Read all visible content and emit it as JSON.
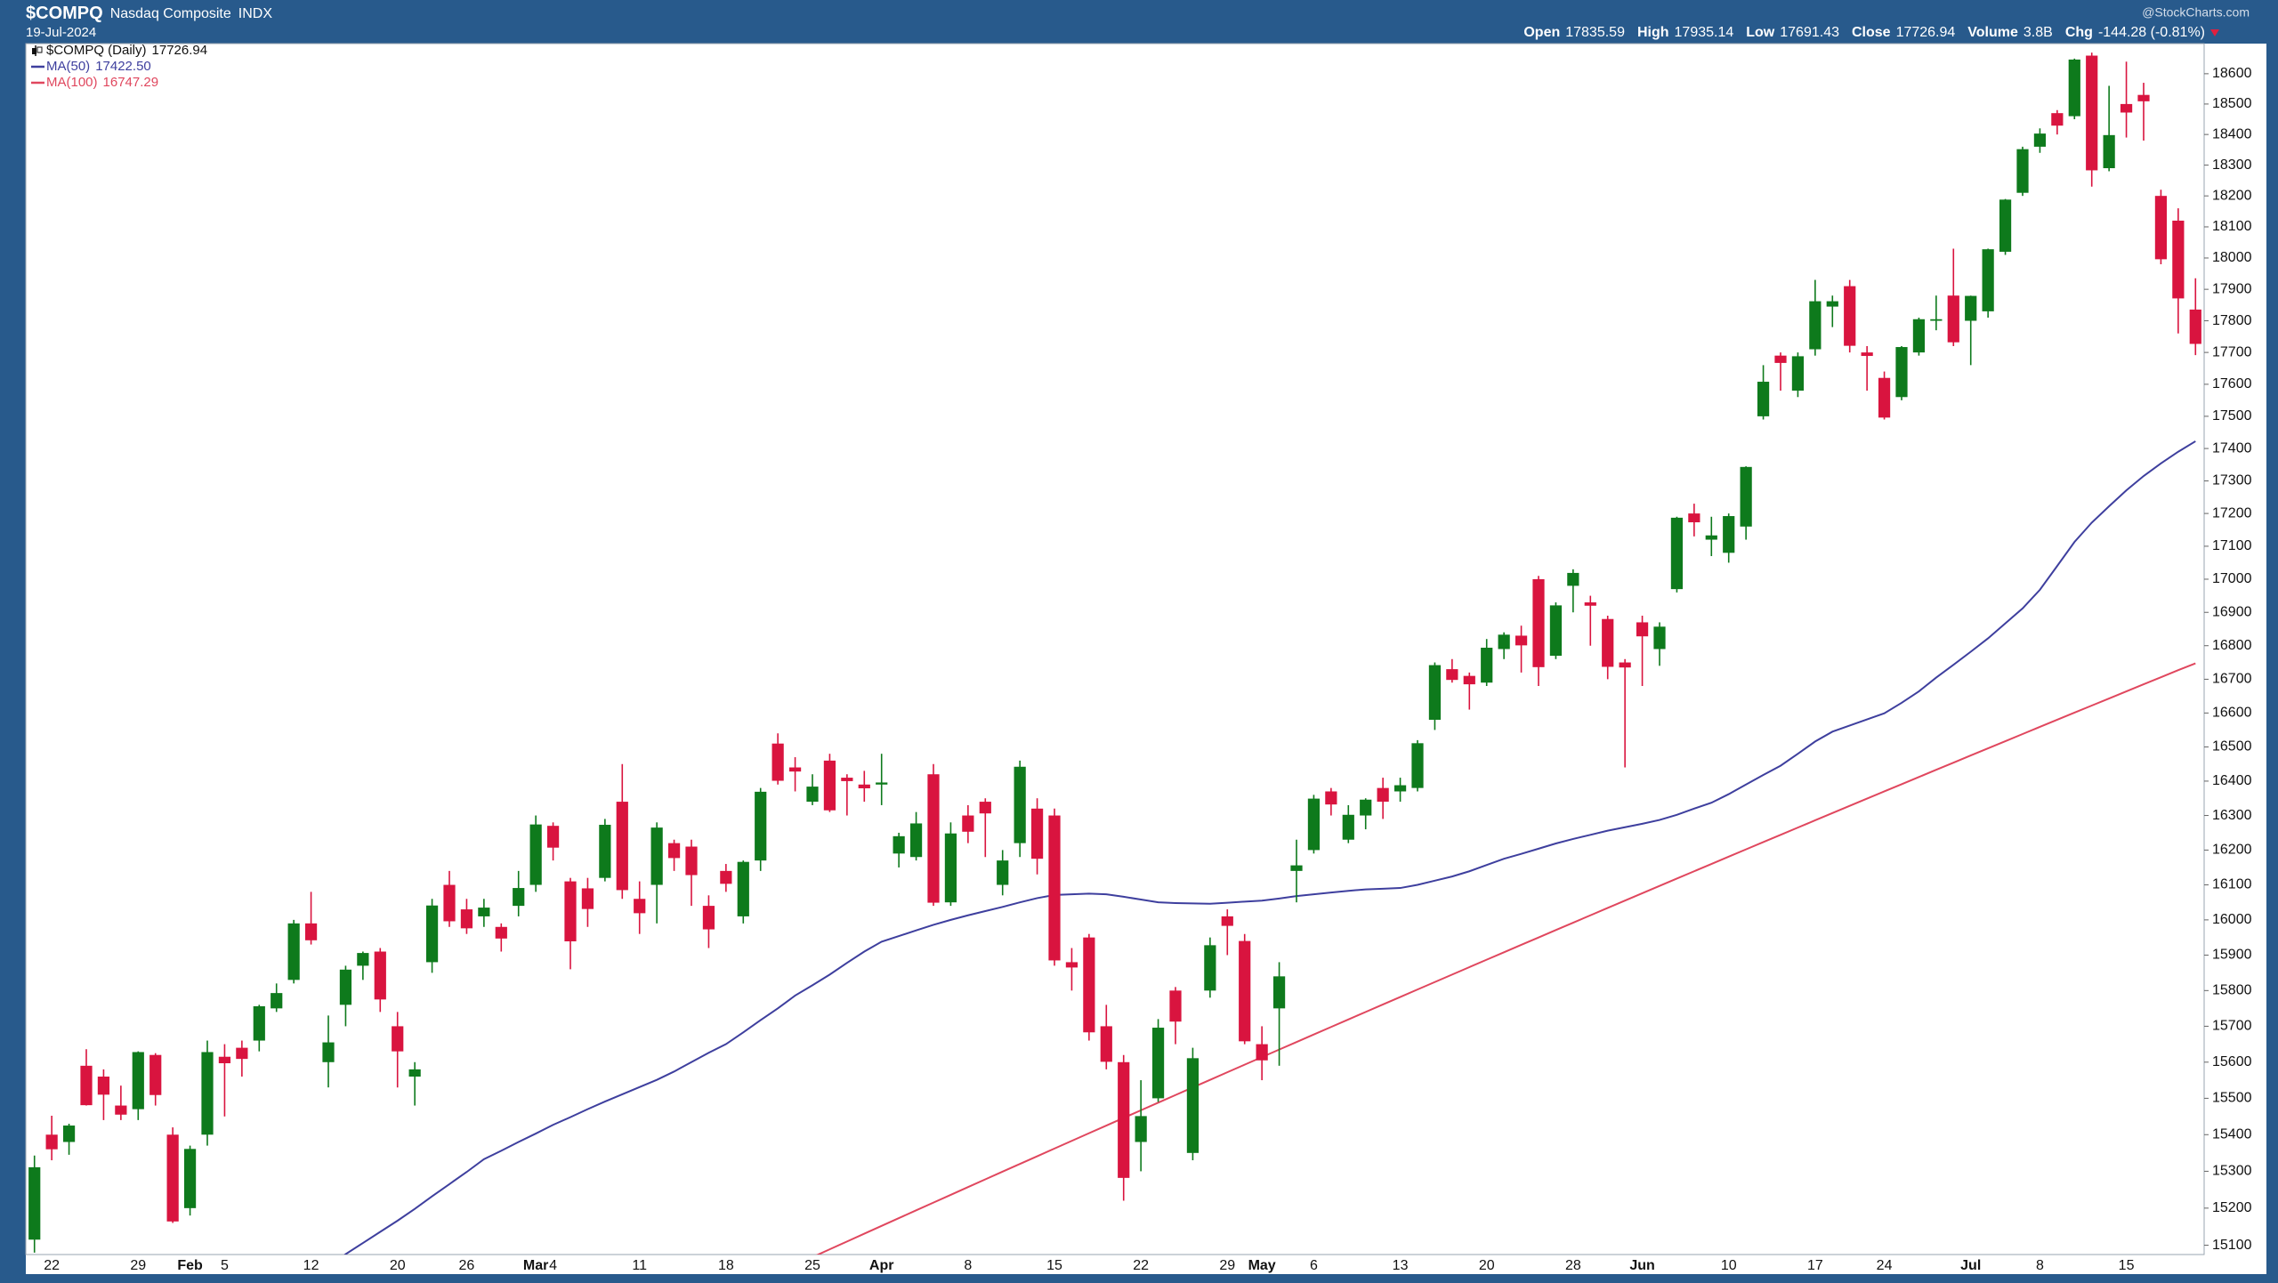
{
  "chart_data": {
    "type": "candlestick",
    "header": {
      "symbol": "$COMPQ",
      "name": "Nasdaq Composite",
      "exchange": "INDX",
      "date": "19-Jul-2024",
      "watermark": "@StockCharts.com",
      "stats": [
        {
          "label": "Open",
          "value": "17835.59"
        },
        {
          "label": "High",
          "value": "17935.14"
        },
        {
          "label": "Low",
          "value": "17691.43"
        },
        {
          "label": "Close",
          "value": "17726.94"
        },
        {
          "label": "Volume",
          "value": "3.8B"
        },
        {
          "label": "Chg",
          "value": "-144.28 (-0.81%)"
        }
      ]
    },
    "log_scale": true,
    "grid": false,
    "legend": "top-left",
    "ylim": [
      15075,
      18700
    ],
    "yticks": [
      15100,
      15200,
      15300,
      15400,
      15500,
      15600,
      15700,
      15800,
      15900,
      16000,
      16100,
      16200,
      16300,
      16400,
      16500,
      16600,
      16700,
      16800,
      16900,
      17000,
      17100,
      17200,
      17300,
      17400,
      17500,
      17600,
      17700,
      17800,
      17900,
      18000,
      18100,
      18200,
      18300,
      18400,
      18500,
      18600
    ],
    "categories": [
      null,
      "22",
      null,
      null,
      null,
      null,
      "29",
      null,
      null,
      "Feb",
      null,
      "5",
      null,
      null,
      null,
      null,
      "12",
      null,
      null,
      null,
      null,
      "20",
      null,
      null,
      null,
      "26",
      null,
      null,
      null,
      "Mar",
      "4",
      null,
      null,
      null,
      null,
      "11",
      null,
      null,
      null,
      null,
      "18",
      null,
      null,
      null,
      null,
      "25",
      null,
      null,
      null,
      "Apr",
      null,
      null,
      null,
      null,
      "8",
      null,
      null,
      null,
      null,
      "15",
      null,
      null,
      null,
      null,
      "22",
      null,
      null,
      null,
      null,
      "29",
      null,
      "May",
      null,
      null,
      "6",
      null,
      null,
      null,
      null,
      "13",
      null,
      null,
      null,
      null,
      "20",
      null,
      null,
      null,
      null,
      "28",
      null,
      null,
      null,
      "Jun",
      null,
      null,
      null,
      null,
      "10",
      null,
      null,
      null,
      null,
      "17",
      null,
      null,
      null,
      "24",
      null,
      null,
      null,
      null,
      "Jul",
      null,
      null,
      null,
      "8",
      null,
      null,
      null,
      null,
      "15",
      null,
      null,
      null,
      null
    ],
    "series": [
      {
        "name": "$COMPQ (Daily)",
        "legend_value": "17726.94",
        "up_color": "#0e7a1c",
        "down_color": "#d9143f",
        "open": [
          15115,
          15400,
          15380,
          15590,
          15560,
          15480,
          15470,
          15620,
          15400,
          15200,
          15400,
          15615,
          15640,
          15660,
          15750,
          15830,
          15990,
          15600,
          15760,
          15870,
          15910,
          15700,
          15560,
          15880,
          16100,
          16030,
          16010,
          15980,
          16040,
          16100,
          16270,
          16110,
          16090,
          16120,
          16340,
          16060,
          16100,
          16220,
          16210,
          16040,
          16140,
          16010,
          16170,
          16510,
          16440,
          16340,
          16460,
          16410,
          16390,
          16390,
          16190,
          16180,
          16420,
          16050,
          16300,
          16340,
          16100,
          16220,
          16320,
          16300,
          15880,
          15950,
          15700,
          15600,
          15380,
          15500,
          15800,
          15350,
          15800,
          16010,
          15940,
          15650,
          15750,
          16140,
          16200,
          16370,
          16230,
          16300,
          16380,
          16370,
          16380,
          16580,
          16730,
          16710,
          16690,
          16790,
          16830,
          17000,
          16770,
          16980,
          16930,
          16880,
          16750,
          16870,
          16790,
          16970,
          17200,
          17120,
          17080,
          17160,
          17500,
          17690,
          17580,
          17710,
          17845,
          17910,
          17700,
          17620,
          17560,
          17700,
          17800,
          17880,
          17800,
          17830,
          18020,
          18210,
          18360,
          18470,
          18460,
          18660,
          18290,
          18500,
          18530,
          18200,
          18120,
          17835.59
        ],
        "high": [
          15343,
          15452,
          15430,
          15636,
          15580,
          15535,
          15630,
          15625,
          15420,
          15370,
          15660,
          15650,
          15660,
          15760,
          15820,
          16000,
          16080,
          15730,
          15870,
          15910,
          15920,
          15740,
          15600,
          16060,
          16140,
          16060,
          16060,
          15990,
          16140,
          16300,
          16280,
          16120,
          16120,
          16290,
          16450,
          16110,
          16280,
          16230,
          16230,
          16070,
          16160,
          16170,
          16380,
          16540,
          16470,
          16420,
          16480,
          16420,
          16430,
          16480,
          16250,
          16310,
          16450,
          16280,
          16330,
          16350,
          16200,
          16460,
          16350,
          16320,
          15920,
          15960,
          15760,
          15620,
          15550,
          15720,
          15810,
          15640,
          15950,
          16030,
          15960,
          15700,
          15880,
          16230,
          16360,
          16380,
          16330,
          16350,
          16410,
          16410,
          16520,
          16750,
          16760,
          16720,
          16820,
          16840,
          16860,
          17010,
          16930,
          17030,
          16950,
          16890,
          16760,
          16890,
          16870,
          17190,
          17230,
          17190,
          17200,
          17345,
          17660,
          17700,
          17700,
          17930,
          17880,
          17930,
          17720,
          17640,
          17720,
          17810,
          17880,
          18030,
          17880,
          18030,
          18190,
          18360,
          18420,
          18480,
          18650,
          18670,
          18560,
          18640,
          18570,
          18220,
          18160,
          17935.14
        ],
        "low": [
          15080,
          15330,
          15345,
          15480,
          15440,
          15440,
          15440,
          15480,
          15160,
          15180,
          15370,
          15450,
          15560,
          15630,
          15740,
          15820,
          15930,
          15530,
          15700,
          15830,
          15740,
          15530,
          15480,
          15850,
          15980,
          15960,
          15980,
          15910,
          16010,
          16080,
          16170,
          15860,
          15980,
          16110,
          16060,
          15960,
          15990,
          16140,
          16040,
          15920,
          16080,
          15990,
          16140,
          16390,
          16370,
          16330,
          16310,
          16300,
          16340,
          16330,
          16150,
          16170,
          16040,
          16040,
          16220,
          16180,
          16070,
          16180,
          16130,
          15870,
          15800,
          15660,
          15580,
          15220,
          15300,
          15490,
          15650,
          15330,
          15780,
          15900,
          15650,
          15550,
          15590,
          16050,
          16190,
          16300,
          16220,
          16260,
          16290,
          16340,
          16370,
          16550,
          16690,
          16610,
          16680,
          16760,
          16720,
          16680,
          16760,
          16900,
          16800,
          16700,
          16440,
          16680,
          16740,
          16960,
          17130,
          17070,
          17050,
          17120,
          17490,
          17580,
          17560,
          17690,
          17780,
          17700,
          17580,
          17490,
          17550,
          17690,
          17770,
          17720,
          17660,
          17810,
          18010,
          18200,
          18340,
          18400,
          18450,
          18230,
          18280,
          18390,
          18380,
          17980,
          17760,
          17691.43
        ],
        "close": [
          15311,
          15360,
          15425,
          15481,
          15510,
          15455,
          15628,
          15509,
          15164,
          15361,
          15628,
          15597,
          15609,
          15756,
          15793,
          15990,
          15942,
          15655,
          15859,
          15906,
          15775,
          15630,
          15580,
          16041,
          15996,
          15976,
          16035,
          15947,
          16091,
          16274,
          16207,
          15939,
          16031,
          16273,
          16085,
          16019,
          16265,
          16177,
          16128,
          15973,
          16103,
          16166,
          16369,
          16401,
          16428,
          16384,
          16315,
          16400,
          16379,
          16396,
          16240,
          16277,
          16049,
          16248,
          16253,
          16306,
          16170,
          16442,
          16175,
          15885,
          15865,
          15683,
          15601,
          15282,
          15451,
          15696,
          15713,
          15611,
          15928,
          15983,
          15658,
          15605,
          15840,
          16156,
          16349,
          16332,
          16302,
          16346,
          16340,
          16388,
          16511,
          16742,
          16698,
          16685,
          16794,
          16833,
          16801,
          16736,
          16921,
          17019,
          16920,
          16737,
          16735,
          16828,
          16857,
          17187,
          17173,
          17133,
          17192,
          17343,
          17608,
          17667,
          17688,
          17862,
          17862,
          17721,
          17689,
          17496,
          17717,
          17805,
          17805,
          17732,
          17879,
          18028,
          18188,
          18352,
          18403,
          18429,
          18647,
          18283,
          18398,
          18472,
          18509,
          17996,
          17871,
          17726.94
        ]
      },
      {
        "name": "MA(50)",
        "legend_value": "17422.50",
        "color": "#3e3f9e",
        "values": [
          null,
          null,
          null,
          null,
          null,
          null,
          null,
          null,
          null,
          null,
          null,
          null,
          null,
          null,
          null,
          null,
          null,
          15040,
          15076,
          15106,
          15136,
          15166,
          15198,
          15232,
          15265,
          15298,
          15333,
          15356,
          15380,
          15403,
          15427,
          15448,
          15470,
          15491,
          15511,
          15531,
          15551,
          15574,
          15600,
          15626,
          15650,
          15683,
          15717,
          15750,
          15786,
          15815,
          15845,
          15878,
          15910,
          15938,
          15954,
          15970,
          15986,
          16000,
          16013,
          16025,
          16037,
          16050,
          16062,
          16071,
          16073,
          16075,
          16073,
          16066,
          16058,
          16050,
          16048,
          16047,
          16046,
          16049,
          16052,
          16055,
          16061,
          16068,
          16073,
          16078,
          16083,
          16087,
          16089,
          16091,
          16100,
          16112,
          16124,
          16139,
          16157,
          16175,
          16189,
          16204,
          16219,
          16232,
          16244,
          16256,
          16266,
          16276,
          16287,
          16302,
          16320,
          16337,
          16362,
          16390,
          16418,
          16445,
          16480,
          16516,
          16545,
          16563,
          16581,
          16599,
          16630,
          16664,
          16705,
          16743,
          16782,
          16822,
          16867,
          16912,
          16968,
          17040,
          17113,
          17172,
          17222,
          17271,
          17315,
          17354,
          17390,
          17422.5
        ]
      },
      {
        "name": "MA(100)",
        "legend_value": "16747.29",
        "color": "#e0475e",
        "values": [
          null,
          null,
          null,
          null,
          null,
          null,
          null,
          null,
          null,
          null,
          null,
          null,
          null,
          null,
          null,
          null,
          null,
          null,
          null,
          null,
          null,
          null,
          null,
          null,
          null,
          null,
          null,
          null,
          null,
          null,
          null,
          null,
          null,
          null,
          null,
          null,
          null,
          null,
          null,
          null,
          null,
          null,
          null,
          null,
          15047,
          15068,
          15089,
          15110,
          15131,
          15152,
          15173,
          15194,
          15215,
          15236,
          15257,
          15278,
          15299,
          15320,
          15341,
          15362,
          15383,
          15404,
          15425,
          15446,
          15467,
          15488,
          15509,
          15530,
          15551,
          15572,
          15593,
          15614,
          15635,
          15656,
          15677,
          15698,
          15719,
          15740,
          15761,
          15782,
          15803,
          15824,
          15845,
          15866,
          15887,
          15908,
          15929,
          15950,
          15971,
          15992,
          16013,
          16034,
          16055,
          16076,
          16097,
          16118,
          16139,
          16160,
          16181,
          16202,
          16223,
          16244,
          16265,
          16286,
          16307,
          16328,
          16349,
          16370,
          16391,
          16412,
          16433,
          16454,
          16475,
          16496,
          16517,
          16538,
          16559,
          16580,
          16601,
          16622,
          16643,
          16664,
          16685,
          16706,
          16727,
          16747.29
        ]
      }
    ]
  }
}
